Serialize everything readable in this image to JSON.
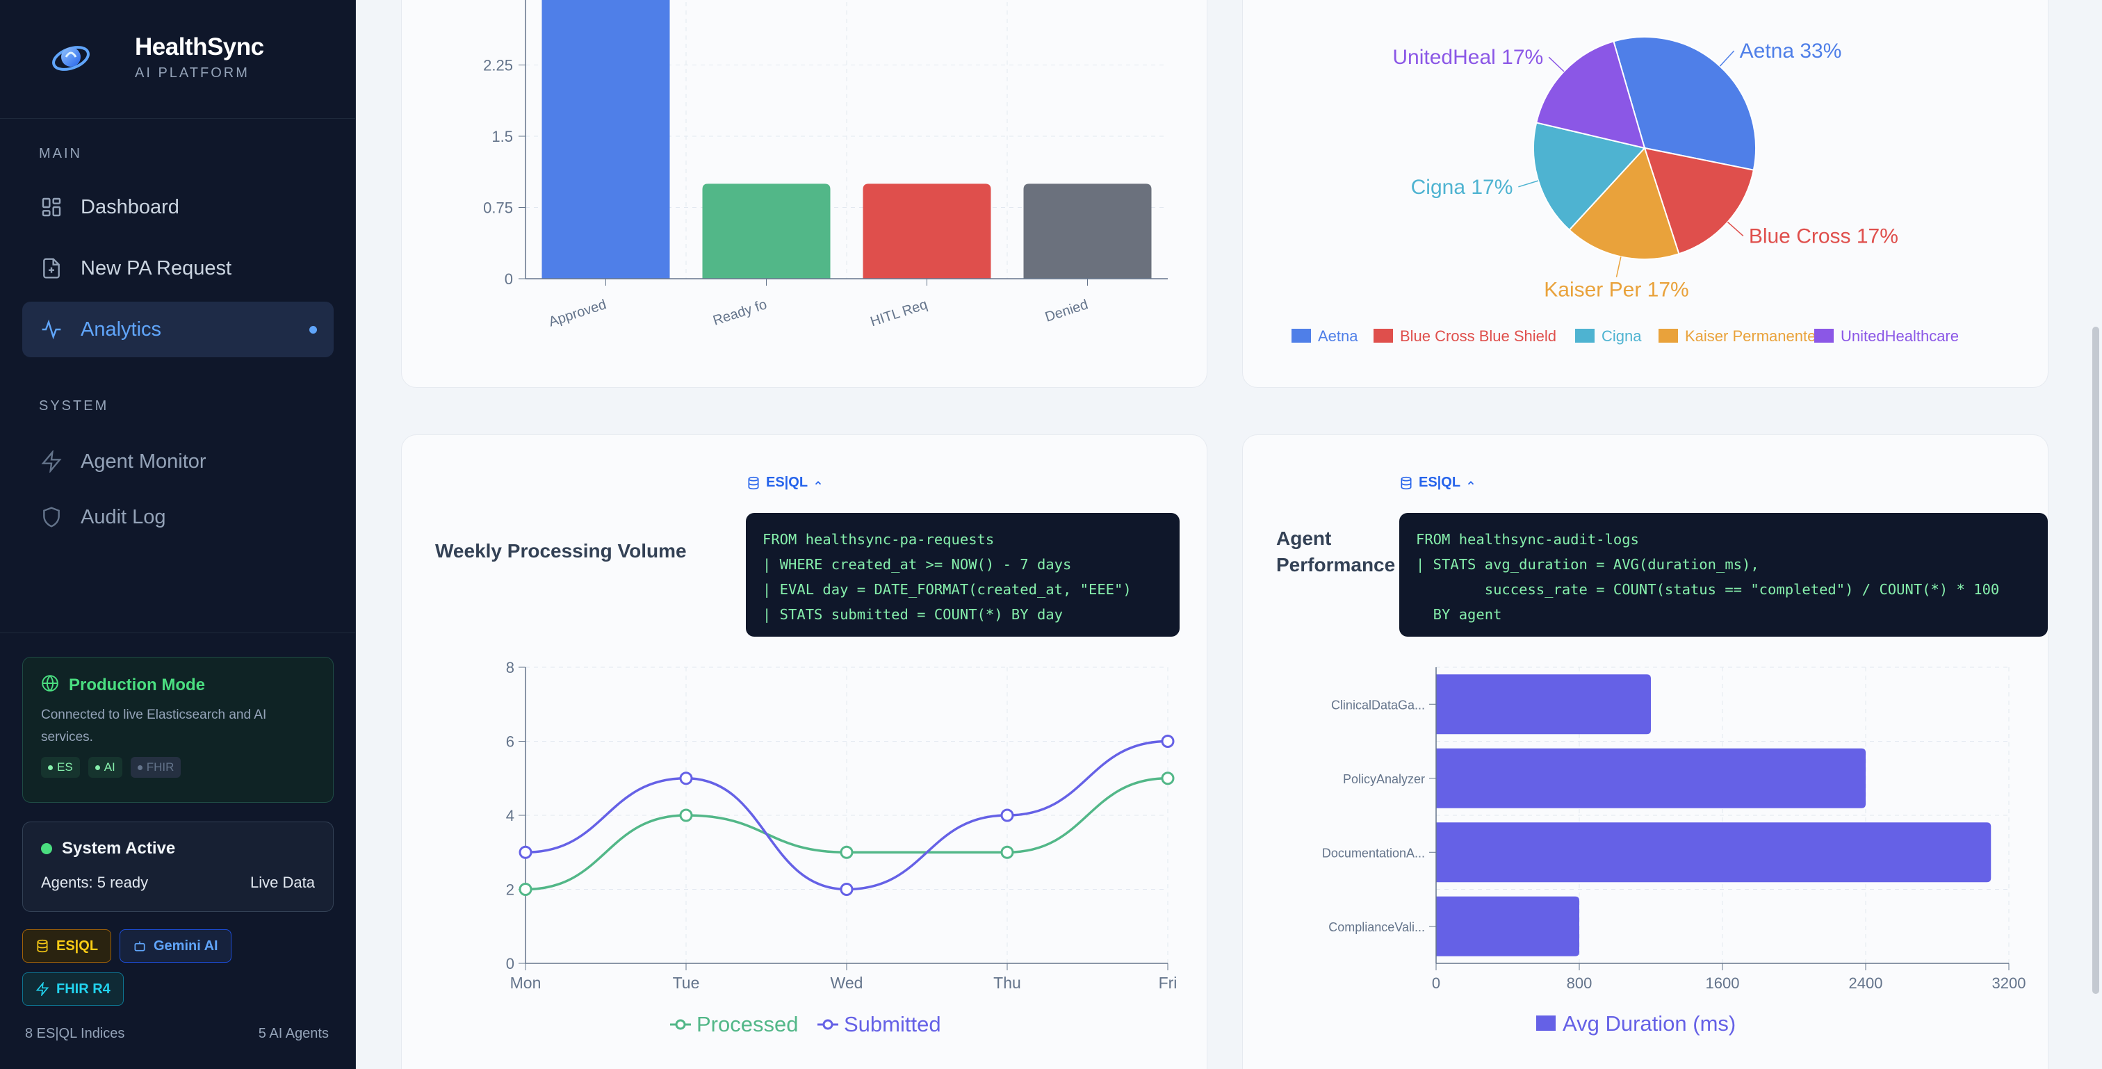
{
  "app": {
    "title": "HealthSync",
    "subtitle": "AI PLATFORM"
  },
  "sidebar": {
    "sections": {
      "main": "MAIN",
      "system": "SYSTEM"
    },
    "items": [
      {
        "label": "Dashboard",
        "icon": "dashboard-icon"
      },
      {
        "label": "New PA Request",
        "icon": "file-plus-icon"
      },
      {
        "label": "Analytics",
        "icon": "activity-icon",
        "active": true
      },
      {
        "label": "Agent Monitor",
        "icon": "zap-icon"
      },
      {
        "label": "Audit Log",
        "icon": "shield-icon"
      }
    ],
    "production": {
      "title": "Production Mode",
      "description": "Connected to live Elasticsearch and AI services.",
      "chips": [
        "ES",
        "AI",
        "FHIR"
      ]
    },
    "status": {
      "title": "System Active",
      "agents": "Agents: 5 ready",
      "mode": "Live Data"
    },
    "tags": [
      "ES|QL",
      "Gemini AI",
      "FHIR R4"
    ],
    "footer": {
      "indices": "8 ES|QL Indices",
      "agents": "5 AI Agents"
    }
  },
  "colors": {
    "blue": "#4f7fe8",
    "green": "#52b788",
    "red": "#df4f4c",
    "gray": "#6b717d",
    "cyan": "#4eb3d1",
    "orange": "#e9a23b",
    "purple": "#8b57e6",
    "indigo": "#6561e6"
  },
  "charts": {
    "status_bar": {
      "type": "bar",
      "categories": [
        "Approved",
        "Ready fo",
        "HITL Req",
        "Denied"
      ],
      "values": [
        3,
        1,
        1,
        1
      ],
      "ylim": [
        0,
        3
      ],
      "yticks": [
        "0",
        "0.75",
        "1.5",
        "2.25"
      ]
    },
    "payer_pie": {
      "type": "pie",
      "slices": [
        {
          "label": "Aetna 33%",
          "value": 33
        },
        {
          "label": "Blue Cross 17%",
          "value": 17
        },
        {
          "label": "Kaiser Per 17%",
          "value": 17
        },
        {
          "label": "Cigna 17%",
          "value": 17
        },
        {
          "label": "UnitedHeal 17%",
          "value": 17
        }
      ],
      "legend": [
        "Aetna",
        "Blue Cross Blue Shield",
        "Cigna",
        "Kaiser Permanente",
        "UnitedHealthcare"
      ]
    },
    "weekly": {
      "title": "Weekly Processing Volume",
      "esql_label": "ES|QL",
      "query": "FROM healthsync-pa-requests\n| WHERE created_at >= NOW() - 7 days\n| EVAL day = DATE_FORMAT(created_at, \"EEE\")\n| STATS submitted = COUNT(*) BY day",
      "chart_data": {
        "type": "line",
        "x": [
          "Mon",
          "Tue",
          "Wed",
          "Thu",
          "Fri"
        ],
        "series": [
          {
            "name": "Processed",
            "values": [
              2,
              4,
              3,
              3,
              5
            ]
          },
          {
            "name": "Submitted",
            "values": [
              3,
              5,
              2,
              4,
              6
            ]
          }
        ],
        "ylim": [
          0,
          8
        ],
        "yticks": [
          "0",
          "2",
          "4",
          "6",
          "8"
        ]
      }
    },
    "agent": {
      "title": "Agent Performance",
      "esql_label": "ES|QL",
      "query": "FROM healthsync-audit-logs\n| STATS avg_duration = AVG(duration_ms),\n        success_rate = COUNT(status == \"completed\") / COUNT(*) * 100\n  BY agent",
      "chart_data": {
        "type": "bar",
        "orientation": "horizontal",
        "categories": [
          "ClinicalDataGa...",
          "PolicyAnalyzer",
          "DocumentationA...",
          "ComplianceVali..."
        ],
        "values": [
          1200,
          2400,
          3100,
          800
        ],
        "xlim": [
          0,
          3200
        ],
        "xticks": [
          "0",
          "800",
          "1600",
          "2400",
          "3200"
        ],
        "legend": "Avg Duration (ms)"
      }
    }
  }
}
